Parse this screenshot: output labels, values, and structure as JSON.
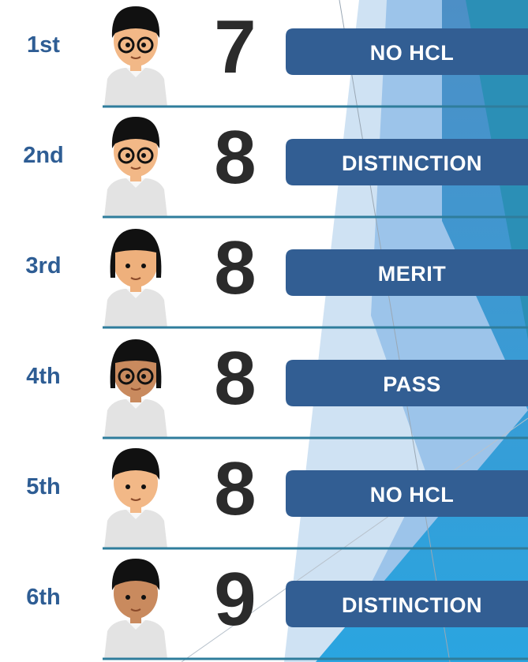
{
  "rows": [
    {
      "rank": "1st",
      "score": 7,
      "result": "NO HCL"
    },
    {
      "rank": "2nd",
      "score": 8,
      "result": "DISTINCTION"
    },
    {
      "rank": "3rd",
      "score": 8,
      "result": "MERIT"
    },
    {
      "rank": "4th",
      "score": 8,
      "result": "PASS"
    },
    {
      "rank": "5th",
      "score": 8,
      "result": "NO HCL"
    },
    {
      "rank": "6th",
      "score": 9,
      "result": "DISTINCTION"
    }
  ]
}
